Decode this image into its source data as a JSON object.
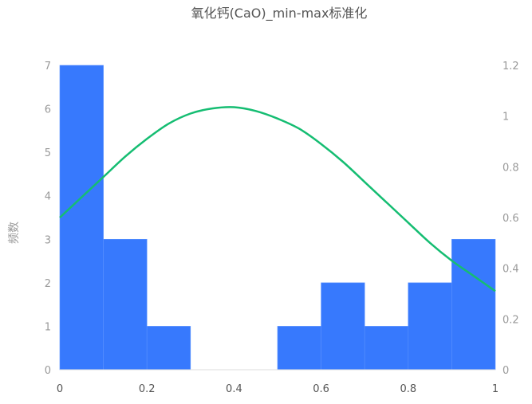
{
  "chart_data": {
    "type": "bar",
    "title": "氧化钙(CaO)_min-max标准化",
    "ylabel": "频数",
    "colors": {
      "bar": "#3779fd",
      "curve": "#15bd72"
    },
    "x_ticks": [
      "0",
      "0.2",
      "0.4",
      "0.6",
      "0.8",
      "1"
    ],
    "y_left_ticks": [
      "0",
      "1",
      "2",
      "3",
      "4",
      "5",
      "6",
      "7"
    ],
    "y_right_ticks": [
      "0",
      "0.2",
      "0.4",
      "0.6",
      "0.8",
      "1",
      "1.2"
    ],
    "xlim": [
      0,
      1
    ],
    "ylim": [
      0,
      7
    ],
    "y2lim": [
      0,
      1.2
    ],
    "bins": [
      {
        "x0": 0.0,
        "x1": 0.1,
        "count": 7
      },
      {
        "x0": 0.1,
        "x1": 0.2,
        "count": 3
      },
      {
        "x0": 0.2,
        "x1": 0.3,
        "count": 1
      },
      {
        "x0": 0.3,
        "x1": 0.4,
        "count": 0
      },
      {
        "x0": 0.4,
        "x1": 0.5,
        "count": 0
      },
      {
        "x0": 0.5,
        "x1": 0.6,
        "count": 1
      },
      {
        "x0": 0.6,
        "x1": 0.7,
        "count": 2
      },
      {
        "x0": 0.7,
        "x1": 0.8,
        "count": 1
      },
      {
        "x0": 0.8,
        "x1": 0.9,
        "count": 2
      },
      {
        "x0": 0.9,
        "x1": 1.0,
        "count": 3
      }
    ],
    "density_curve": {
      "x": [
        0,
        0.05,
        0.1,
        0.15,
        0.2,
        0.25,
        0.3,
        0.35,
        0.4,
        0.45,
        0.5,
        0.55,
        0.6,
        0.65,
        0.7,
        0.75,
        0.8,
        0.85,
        0.9,
        0.95,
        1.0
      ],
      "y": [
        0.6,
        0.68,
        0.76,
        0.84,
        0.91,
        0.97,
        1.01,
        1.03,
        1.035,
        1.02,
        0.99,
        0.95,
        0.89,
        0.82,
        0.74,
        0.66,
        0.58,
        0.5,
        0.43,
        0.37,
        0.31
      ]
    }
  }
}
